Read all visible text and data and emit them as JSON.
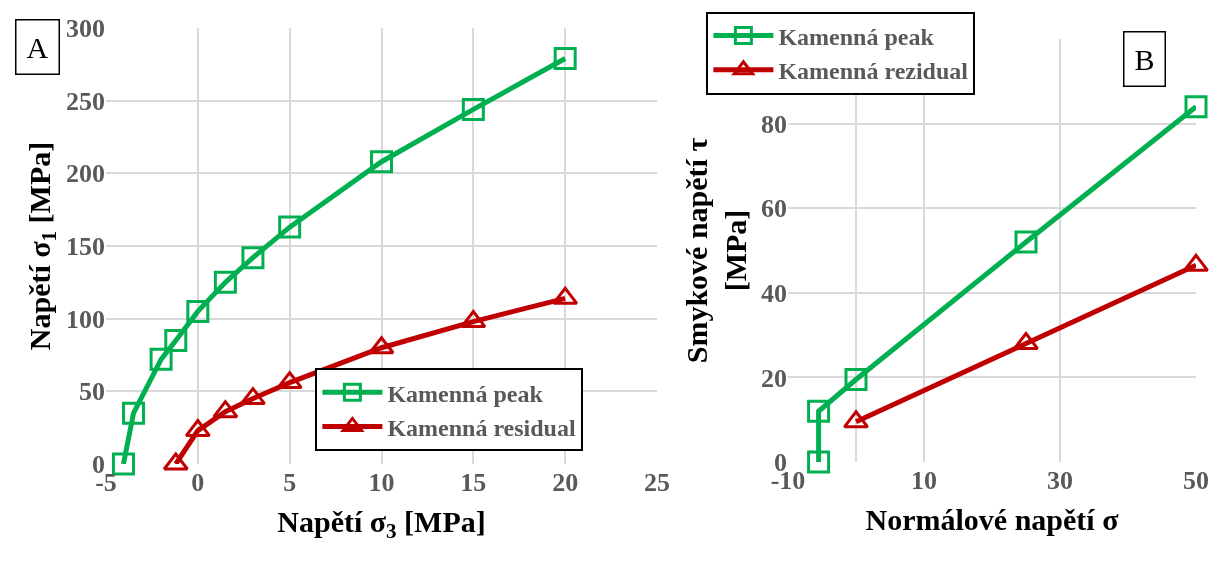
{
  "chart_data": [
    {
      "type": "line",
      "xlabel": "Napětí σ$_{3}$ [MPa]",
      "ylabel": "Napětí σ$_{1}$ [MPa]",
      "annotations": [
        "A"
      ],
      "xlim": [
        -5,
        25
      ],
      "xticks": [
        -5,
        0,
        5,
        10,
        15,
        20,
        25
      ],
      "ylim": [
        0,
        300
      ],
      "yticks": [
        0,
        50,
        100,
        150,
        200,
        250,
        300
      ],
      "grid": true,
      "legend": "bottom right",
      "line_style": "solid",
      "series": [
        {
          "name": "Kamenná peak",
          "color": "#00b050",
          "marker": "square",
          "x": [
            -4.05,
            -3.5,
            -2.0,
            -1.2,
            0,
            1.5,
            3,
            5,
            10,
            15,
            20
          ],
          "values": [
            0,
            35,
            72,
            85,
            105,
            125,
            142,
            163,
            208,
            244,
            279
          ]
        },
        {
          "name": "Kamenná residual",
          "color": "#c00000",
          "marker": "triangle",
          "x": [
            -1.2,
            0,
            1.5,
            3,
            5,
            10,
            15,
            20
          ],
          "values": [
            0,
            23,
            36,
            45,
            56,
            80,
            98,
            114
          ]
        }
      ]
    },
    {
      "type": "line",
      "xlabel": "Normálové napětí σ",
      "ylabel": "Smykové napětí τ\n[MPa]",
      "annotations": [
        "B"
      ],
      "xlim": [
        -10,
        50
      ],
      "xticks": [
        -10,
        {
          "value": 0,
          "label": null
        },
        10,
        30,
        50
      ],
      "ylim": [
        0,
        100
      ],
      "yticks": [
        0,
        20,
        40,
        60,
        80
      ],
      "grid": true,
      "legend": "top left",
      "line_style": "solid",
      "series": [
        {
          "name": "Kamenná peak",
          "color": "#00b050",
          "marker": "square",
          "x": [
            -5.5,
            -5.5,
            0,
            25,
            50
          ],
          "values": [
            0,
            12,
            19.5,
            52,
            84
          ]
        },
        {
          "name": "Kamenná rezidual",
          "color": "#c00000",
          "marker": "triangle",
          "x": [
            0,
            25,
            50
          ],
          "values": [
            9.5,
            28,
            46.5
          ]
        }
      ]
    }
  ]
}
